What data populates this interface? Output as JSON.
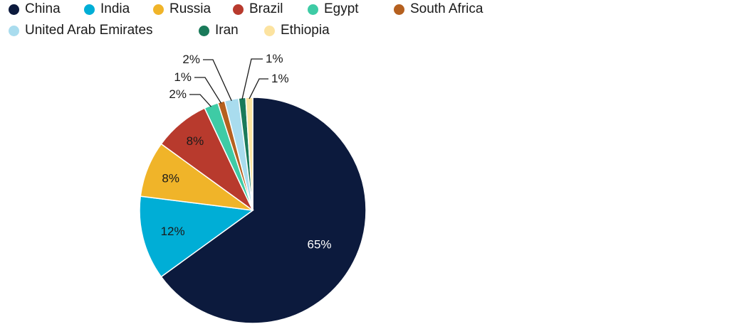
{
  "chart_data": {
    "type": "pie",
    "title": "",
    "legend_position": "top",
    "start": "top, clockwise",
    "slices": [
      {
        "name": "China",
        "value": 65,
        "label": "65%",
        "color": "#0c1a3d"
      },
      {
        "name": "India",
        "value": 12,
        "label": "12%",
        "color": "#00aed6"
      },
      {
        "name": "Russia",
        "value": 8,
        "label": "8%",
        "color": "#f0b429"
      },
      {
        "name": "Brazil",
        "value": 8,
        "label": "8%",
        "color": "#b83a2d"
      },
      {
        "name": "Egypt",
        "value": 2,
        "label": "2%",
        "color": "#3ecba5"
      },
      {
        "name": "South Africa",
        "value": 1,
        "label": "1%",
        "color": "#b5601f"
      },
      {
        "name": "United Arab Emirates",
        "value": 2,
        "label": "2%",
        "color": "#a9dcee"
      },
      {
        "name": "Iran",
        "value": 1,
        "label": "1%",
        "color": "#1a7a5a"
      },
      {
        "name": "Ethiopia",
        "value": 1,
        "label": "1%",
        "color": "#fce3a0"
      }
    ]
  }
}
